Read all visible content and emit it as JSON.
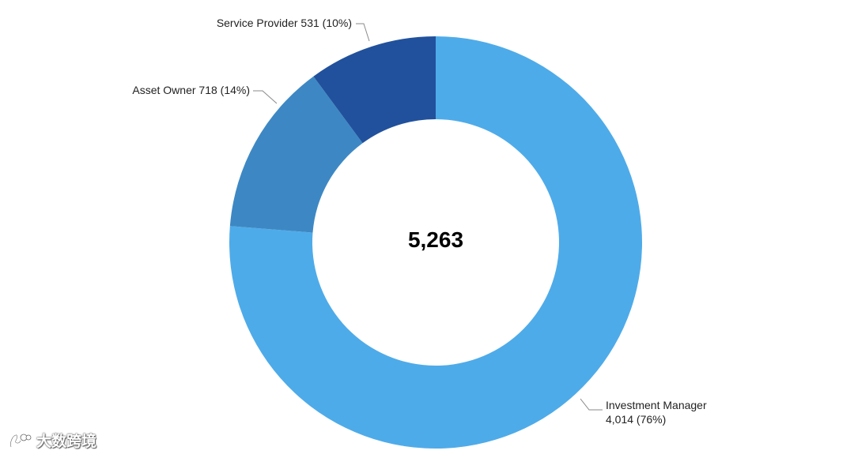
{
  "chart_data": {
    "type": "pie",
    "variant": "donut",
    "center_label": "5,263",
    "slices": [
      {
        "name": "Investment Manager",
        "value": 4014,
        "label_lines": [
          "Investment Manager",
          "4,014 (76%)"
        ],
        "color": "#4eabe9"
      },
      {
        "name": "Asset Owner",
        "value": 718,
        "label_lines": [
          "Asset Owner 718 (14%)"
        ],
        "color": "#3d88c4"
      },
      {
        "name": "Service Provider",
        "value": 531,
        "label_lines": [
          "Service Provider 531 (10%)"
        ],
        "color": "#21519c"
      }
    ]
  },
  "watermark": {
    "text": "大数跨境"
  }
}
